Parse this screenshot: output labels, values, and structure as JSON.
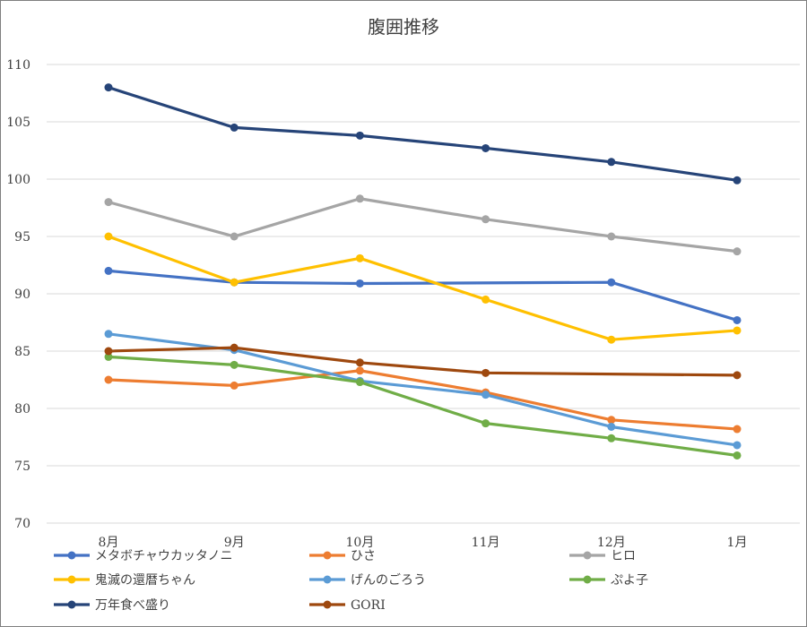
{
  "chart_data": {
    "type": "line",
    "title": "腹囲推移",
    "xlabel": "",
    "ylabel": "",
    "categories": [
      "8月",
      "9月",
      "10月",
      "11月",
      "12月",
      "1月"
    ],
    "ylim": [
      70,
      110
    ],
    "yticks": [
      70,
      75,
      80,
      85,
      90,
      95,
      100,
      105,
      110
    ],
    "grid": true,
    "legend_position": "bottom",
    "series": [
      {
        "name": "メタボチャウカッタノニ",
        "color": "#4472c4",
        "values": [
          92,
          91,
          90.9,
          null,
          91,
          87.7
        ]
      },
      {
        "name": "ひさ",
        "color": "#ed7d31",
        "values": [
          82.5,
          82,
          83.3,
          81.4,
          79,
          78.2
        ]
      },
      {
        "name": "ヒロ",
        "color": "#a5a5a5",
        "values": [
          98,
          95,
          98.3,
          96.5,
          95,
          93.7
        ]
      },
      {
        "name": "鬼滅の還暦ちゃん",
        "color": "#ffc000",
        "values": [
          95,
          91,
          93.1,
          89.5,
          86,
          86.8
        ]
      },
      {
        "name": "げんのごろう",
        "color": "#5b9bd5",
        "values": [
          86.5,
          85.1,
          82.4,
          81.2,
          78.4,
          76.8
        ]
      },
      {
        "name": "ぷよ子",
        "color": "#70ad47",
        "values": [
          84.5,
          83.8,
          82.3,
          78.7,
          77.4,
          75.9
        ]
      },
      {
        "name": "万年食べ盛り",
        "color": "#264478",
        "values": [
          108,
          104.5,
          103.8,
          102.7,
          101.5,
          99.9
        ]
      },
      {
        "name": "GORI",
        "color": "#9e480e",
        "values": [
          85,
          85.3,
          84,
          83.1,
          null,
          82.9
        ]
      }
    ]
  }
}
